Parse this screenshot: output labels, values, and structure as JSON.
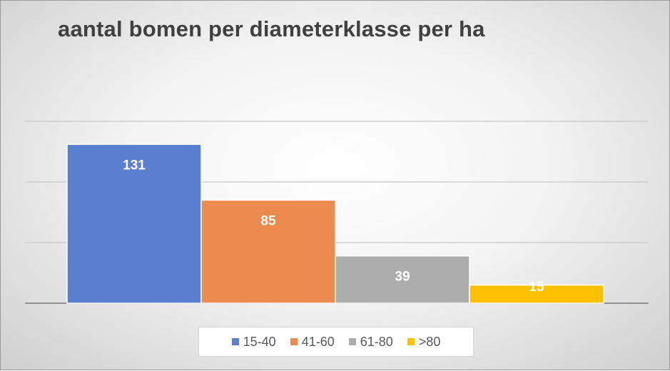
{
  "chart_data": {
    "type": "bar",
    "title": "aantal bomen per diameterklasse per ha",
    "xlabel": "",
    "ylabel": "",
    "categories": [
      "15-40",
      "41-60",
      "61-80",
      ">80"
    ],
    "values": [
      131,
      85,
      39,
      15
    ],
    "colors": [
      "#5B7FD0",
      "#ED8A4E",
      "#ADADAD",
      "#FFC000"
    ],
    "ylim": [
      0,
      150
    ],
    "grid": true,
    "data_labels": true,
    "legend": "bottom",
    "gridline_values": [
      0,
      50,
      100,
      150
    ]
  }
}
